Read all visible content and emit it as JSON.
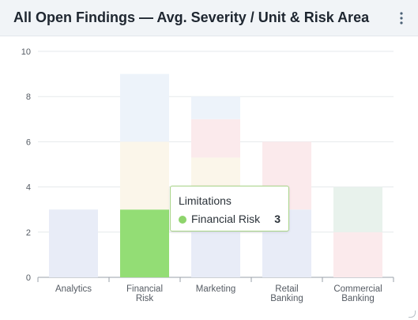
{
  "widget": {
    "title": "All Open Findings — Avg. Severity / Unit & Risk Area",
    "menu_icon": "kebab-menu-icon",
    "resize_icon": "resize-handle-icon"
  },
  "tooltip": {
    "title": "Limitations",
    "series": "Financial Risk",
    "value": "3",
    "color": "#8ed46c"
  },
  "chart_data": {
    "type": "bar",
    "stacked": true,
    "categories": [
      [
        "Analytics"
      ],
      [
        "Financial",
        "Risk"
      ],
      [
        "Marketing"
      ],
      [
        "Retail",
        "Banking"
      ],
      [
        "Commercial",
        "Banking"
      ]
    ],
    "ylim": [
      0,
      10
    ],
    "yticks": [
      0,
      2,
      4,
      6,
      8,
      10
    ],
    "grid": true,
    "highlighted": {
      "category_index": 1,
      "segment_index": 0
    },
    "stacks": [
      {
        "segments": [
          {
            "value": 3,
            "color": "#e8ecf7"
          }
        ]
      },
      {
        "segments": [
          {
            "value": 3,
            "color": "#93dd75"
          },
          {
            "value": 3,
            "color": "#fbf6ea"
          },
          {
            "value": 3,
            "color": "#edf3fa"
          }
        ]
      },
      {
        "segments": [
          {
            "value": 4,
            "color": "#e8ecf7"
          },
          {
            "value": 1.3,
            "color": "#fbf6ea"
          },
          {
            "value": 1.7,
            "color": "#fbeaec"
          },
          {
            "value": 1,
            "color": "#edf3fa"
          }
        ]
      },
      {
        "segments": [
          {
            "value": 3,
            "color": "#e8ecf7"
          },
          {
            "value": 3,
            "color": "#fbeaec"
          }
        ]
      },
      {
        "segments": [
          {
            "value": 2,
            "color": "#fbeaec"
          },
          {
            "value": 2,
            "color": "#e8f2ec"
          }
        ]
      }
    ]
  }
}
